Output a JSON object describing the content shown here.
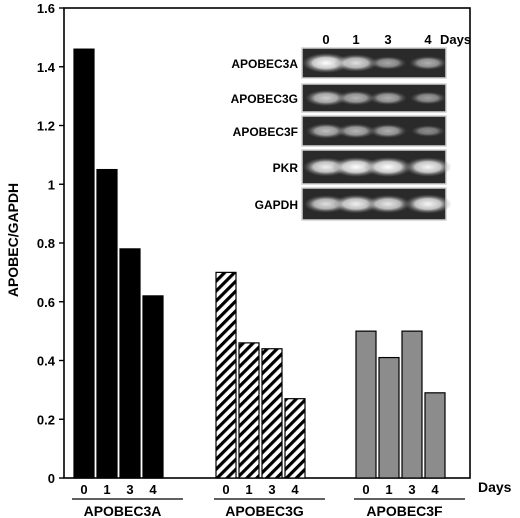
{
  "chart_data": {
    "type": "bar",
    "ylabel": "APOBEC/GAPDH",
    "ylim": [
      0,
      1.6
    ],
    "yticks": [
      "0",
      "0.2",
      "0.4",
      "0.6",
      "0.8",
      "1",
      "1.2",
      "1.4",
      "1.6"
    ],
    "x_unit_label": "Days",
    "groups": [
      {
        "name": "APOBEC3A",
        "days": [
          "0",
          "1",
          "3",
          "4"
        ],
        "values": [
          1.46,
          1.05,
          0.78,
          0.62
        ],
        "fill": "solid-black"
      },
      {
        "name": "APOBEC3G",
        "days": [
          "0",
          "1",
          "3",
          "4"
        ],
        "values": [
          0.7,
          0.46,
          0.44,
          0.27
        ],
        "fill": "diagonal-hatch"
      },
      {
        "name": "APOBEC3F",
        "days": [
          "0",
          "1",
          "3",
          "4"
        ],
        "values": [
          0.5,
          0.41,
          0.5,
          0.29
        ],
        "fill": "solid-gray"
      }
    ],
    "grid": false,
    "colors": {
      "apobec3a": "#000000",
      "apobec3g_hatch": "#000000",
      "apobec3f": "#8c8c8c"
    }
  },
  "gel_inset": {
    "header_days": [
      "0",
      "1",
      "3",
      "4"
    ],
    "header_unit": "Days",
    "rows": [
      {
        "label": "APOBEC3A",
        "band_intensity": [
          1.0,
          0.8,
          0.45,
          0.5
        ]
      },
      {
        "label": "APOBEC3G",
        "band_intensity": [
          0.7,
          0.55,
          0.5,
          0.4
        ]
      },
      {
        "label": "APOBEC3F",
        "band_intensity": [
          0.6,
          0.55,
          0.5,
          0.3
        ]
      },
      {
        "label": "PKR",
        "band_intensity": [
          0.9,
          1.0,
          1.0,
          0.95
        ]
      },
      {
        "label": "GAPDH",
        "band_intensity": [
          0.8,
          0.9,
          0.85,
          0.95
        ]
      }
    ]
  }
}
